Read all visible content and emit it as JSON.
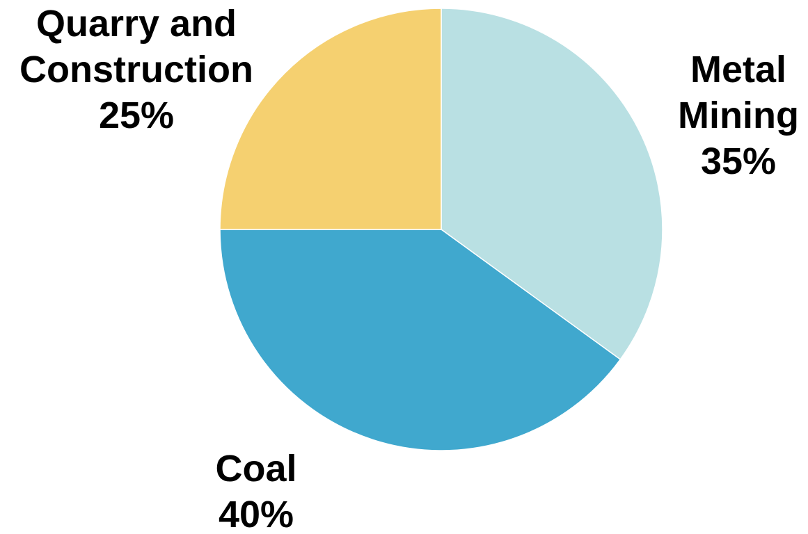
{
  "chart_data": {
    "type": "pie",
    "slices": [
      {
        "label": "Metal Mining",
        "label_lines": [
          "Metal",
          "Mining"
        ],
        "value": 35,
        "value_label": "35%",
        "color": "#b9e0e3"
      },
      {
        "label": "Coal",
        "label_lines": [
          "Coal"
        ],
        "value": 40,
        "value_label": "40%",
        "color": "#40a8ce"
      },
      {
        "label": "Quarry and Construction",
        "label_lines": [
          "Quarry and",
          "Construction"
        ],
        "value": 25,
        "value_label": "25%",
        "color": "#f5d070"
      }
    ],
    "start": "12 o'clock",
    "direction": "clockwise",
    "legend": "none",
    "labels_position": "outside"
  }
}
